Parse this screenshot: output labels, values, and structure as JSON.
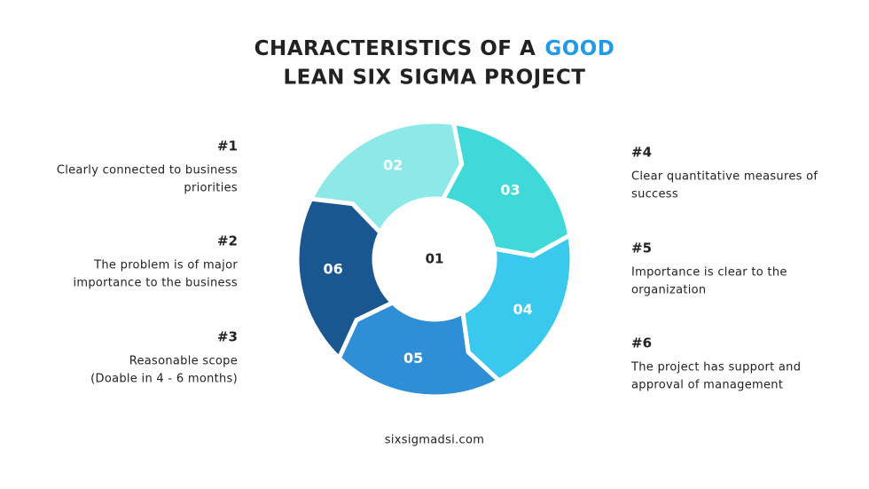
{
  "title": {
    "line1": "CHARACTERISTICS OF A",
    "highlight": "GOOD",
    "line2": "LEAN SIX SIGMA PROJECT"
  },
  "center": "01",
  "segments": [
    "02",
    "03",
    "04",
    "05",
    "06"
  ],
  "left_items": [
    {
      "number": "#1",
      "lines": [
        "Clearly connected to business",
        "priorities"
      ]
    },
    {
      "number": "#2",
      "lines": [
        "The problem is of major",
        "importance to the business"
      ]
    },
    {
      "number": "#3",
      "lines": [
        "Reasonable scope",
        "(Doable in 4 - 6 months)"
      ]
    }
  ],
  "right_items": [
    {
      "number": "#4",
      "lines": [
        "Clear quantitative measures of",
        "success"
      ]
    },
    {
      "number": "#5",
      "lines": [
        "Importance is clear to the",
        "organization"
      ]
    },
    {
      "number": "#6",
      "lines": [
        "The project has support and",
        "approval of management"
      ]
    }
  ],
  "footer": "sixsigmadsi.com"
}
